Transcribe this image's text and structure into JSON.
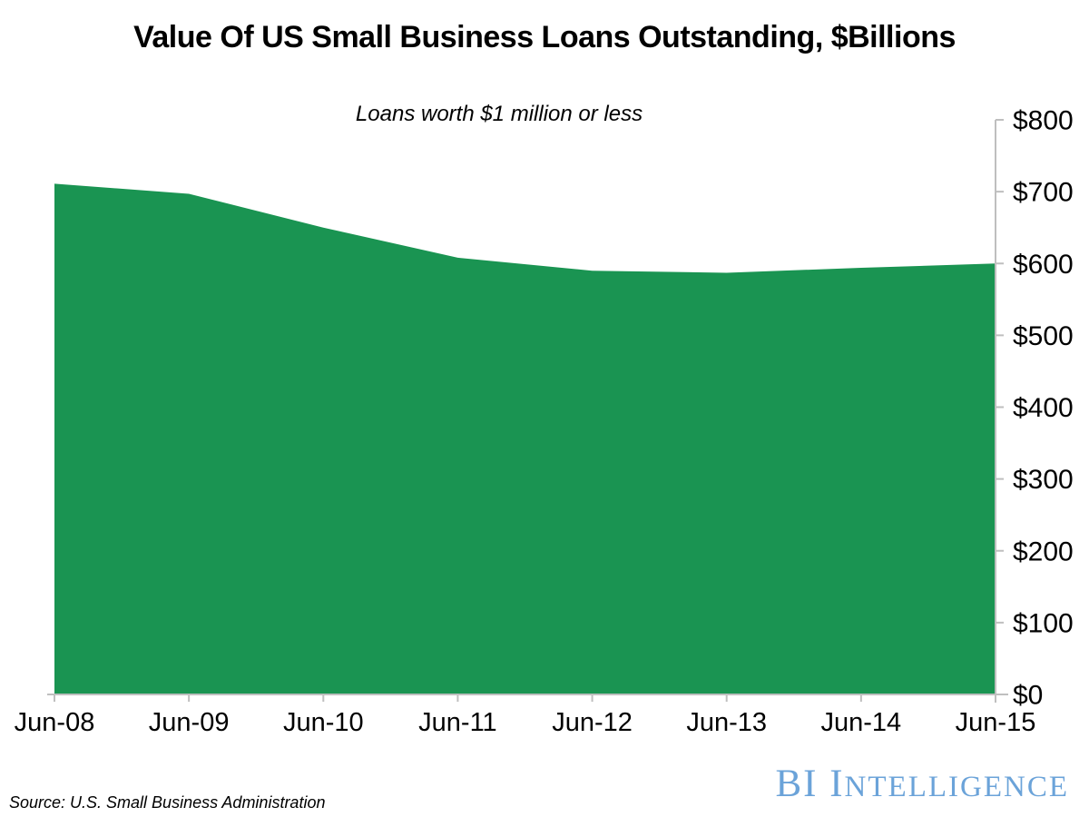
{
  "header": {
    "title": "Value Of US Small Business Loans Outstanding, $Billions",
    "subtitle": "Loans worth $1 million or less"
  },
  "chart_data": {
    "type": "area",
    "categories": [
      "Jun-08",
      "Jun-09",
      "Jun-10",
      "Jun-11",
      "Jun-12",
      "Jun-13",
      "Jun-14",
      "Jun-15"
    ],
    "values": [
      711,
      697,
      650,
      608,
      590,
      587,
      594,
      600
    ],
    "title": "Value Of US Small Business Loans Outstanding, $Billions",
    "subtitle": "Loans worth $1 million or less",
    "xlabel": "",
    "ylabel": "",
    "ylim": [
      0,
      800
    ],
    "ytick_step": 100,
    "ytick_labels": [
      "$0",
      "$100",
      "$200",
      "$300",
      "$400",
      "$500",
      "$600",
      "$700",
      "$800"
    ],
    "ytick_side": "right",
    "grid": false,
    "legend": false,
    "area_color": "#1A9452",
    "axis_color": "#BFBFBF",
    "label_color": "#000000",
    "tick_font_size": 30,
    "xtick_font_size": 29
  },
  "footer": {
    "source": "Source: U.S. Small Business Administration",
    "logo_primary": "BI I",
    "logo_secondary": "NTELLIGENCE",
    "logo_color": "#6BA3D9"
  }
}
